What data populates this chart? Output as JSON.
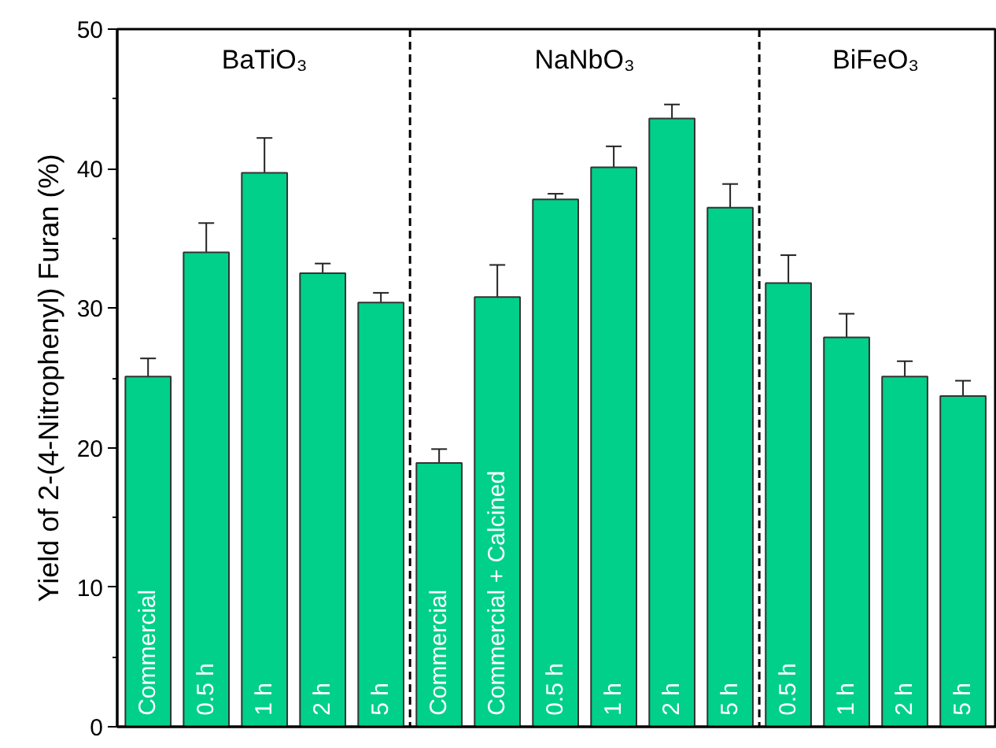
{
  "chart_data": {
    "type": "bar",
    "ylabel": "Yield of 2-(4-Nitrophenyl) Furan (%)",
    "categories": [
      "Commercial",
      "0.5 h",
      "1 h",
      "2 h",
      "5 h",
      "Commercial",
      "Commercial + Calcined",
      "0.5 h",
      "1 h",
      "2 h",
      "5 h",
      "0.5 h",
      "1 h",
      "2 h",
      "5 h"
    ],
    "values": [
      25.1,
      34.0,
      39.7,
      32.5,
      30.4,
      18.9,
      30.8,
      37.8,
      40.1,
      43.6,
      37.2,
      31.8,
      27.9,
      25.1,
      23.7
    ],
    "errors": [
      1.3,
      2.1,
      2.5,
      0.7,
      0.7,
      1.0,
      2.3,
      0.4,
      1.5,
      1.0,
      1.7,
      2.0,
      1.7,
      1.1,
      1.1
    ],
    "color": "#00d08a",
    "ylim": [
      0,
      50
    ],
    "yticks": [
      0,
      10,
      20,
      30,
      40,
      50
    ],
    "annotations": [
      "BaTiO₃",
      "NaNbO₃",
      "BiFeO₃"
    ]
  }
}
